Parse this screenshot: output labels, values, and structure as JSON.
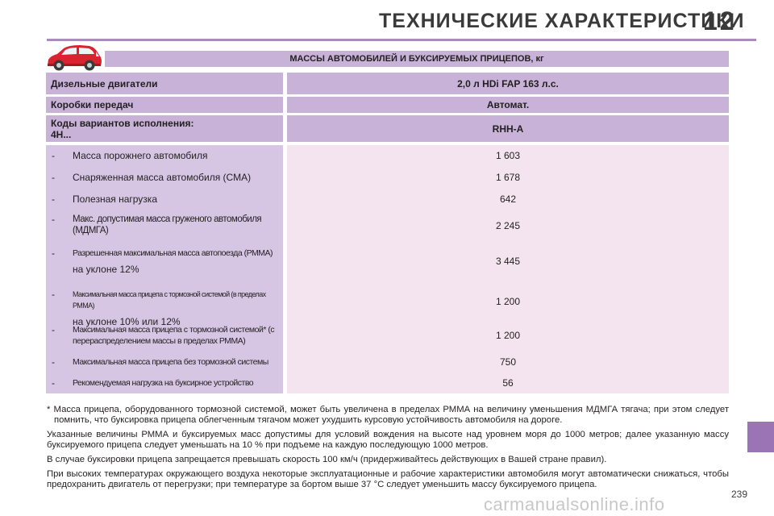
{
  "header": {
    "title": "ТЕХНИЧЕСКИЕ ХАРАКТЕРИСТИКИ",
    "chapter_number": "12"
  },
  "table": {
    "title": "МАССЫ АВТОМОБИЛЕЙ И БУКСИРУЕМЫХ ПРИЦЕПОВ, кг",
    "engine_label": "Дизельные двигатели",
    "engine_value": "2,0 л HDi FAP 163 л.с.",
    "gearbox_label": "Коробки передач",
    "gearbox_value": "Автомат.",
    "variant_label_line1": "Коды вариантов исполнения:",
    "variant_label_line2": "4H...",
    "variant_value": "RHH-A",
    "rows": [
      {
        "dash": "-",
        "label": "Масса порожнего автомобиля",
        "value": "1 603"
      },
      {
        "dash": "-",
        "label": "Снаряженная масса автомобиля (СМА)",
        "value": "1 678"
      },
      {
        "dash": "-",
        "label": "Полезная нагрузка",
        "value": "642"
      },
      {
        "dash": "-",
        "label": "Макс. допустимая масса груженого автомобиля (МДМГА)",
        "value": "2 245"
      },
      {
        "dash": "-",
        "label": "Разрешенная максимальная масса автопоезда (РММА)",
        "sub": "на уклоне 12%",
        "value": "3 445"
      },
      {
        "dash": "-",
        "label": "Максимальная масса прицепа с тормозной системой (в пределах РММА)",
        "sub": "на уклоне 10% или 12%",
        "value": "1 200"
      },
      {
        "dash": "-",
        "label": "Максимальная масса прицепа с тормозной системой* (с перераспределением массы в пределах РММА)",
        "value": "1 200"
      },
      {
        "dash": "-",
        "label": "Максимальная масса прицепа без тормозной системы",
        "value": "750"
      },
      {
        "dash": "-",
        "label": "Рекомендуемая нагрузка на буксирное устройство",
        "value": "56"
      }
    ]
  },
  "notes": {
    "footnote": "* Масса прицепа, оборудованного тормозной системой, может быть увеличена в пределах РММА на величину уменьшения МДМГА тягача; при этом следует помнить, что буксировка прицепа облегченным тягачом может ухудшить курсовую устойчивость автомобиля на дороге.",
    "p1": "Указанные величины РММА и буксируемых масс допустимы для условий вождения на высоте над уровнем моря до 1000 метров; далее указанную массу буксируемого прицепа следует уменьшать на 10 % при подъеме на каждую последующую 1000 метров.",
    "p2": "В случае буксировки прицепа запрещается превышать скорость 100 км/ч (придерживайтесь действующих в Вашей стране правил).",
    "p3": "При высоких температурах окружающего воздуха некоторые эксплуатационные и рабочие характеристики автомобиля могут автоматически снижаться, чтобы предохранить двигатель от перегрузки; при температуре за бортом выше 37 °C следует уменьшить массу буксируемого прицепа."
  },
  "page_number": "239",
  "watermark": "carmanualsonline.info",
  "colors": {
    "accent_bar": "#c9b2d8",
    "body_left": "#d7c5e4",
    "body_right": "#f3e4f0",
    "side_tab": "#9a74b5",
    "car_red": "#d9232e"
  },
  "icons": {
    "car": "car-icon"
  }
}
